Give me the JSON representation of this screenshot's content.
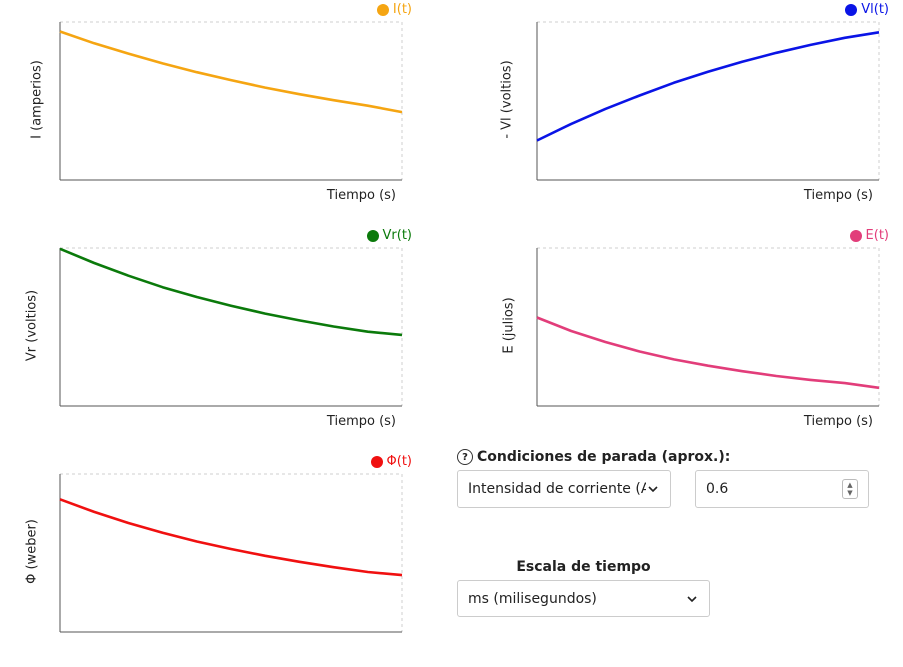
{
  "chart_data": [
    {
      "type": "line",
      "legend": "I(t)",
      "color": "#f5a512",
      "ylabel": "I (amperios)",
      "xlabel": "Tiempo (s)",
      "grid": false,
      "legend_position": "top-right",
      "x": [
        0,
        0.1,
        0.2,
        0.3,
        0.4,
        0.5,
        0.6,
        0.7,
        0.8,
        0.9,
        1.0
      ],
      "values": [
        0.94,
        0.865,
        0.8,
        0.738,
        0.682,
        0.632,
        0.585,
        0.543,
        0.505,
        0.47,
        0.43
      ]
    },
    {
      "type": "line",
      "legend": "Vl(t)",
      "color": "#0a14e6",
      "ylabel": "- Vl (voltios)",
      "xlabel": "Tiempo (s)",
      "grid": false,
      "legend_position": "top-right",
      "x": [
        0,
        0.1,
        0.2,
        0.3,
        0.4,
        0.5,
        0.6,
        0.7,
        0.8,
        0.9,
        1.0
      ],
      "values": [
        0.25,
        0.355,
        0.45,
        0.535,
        0.615,
        0.685,
        0.748,
        0.805,
        0.855,
        0.9,
        0.935
      ]
    },
    {
      "type": "line",
      "legend": "Vr(t)",
      "color": "#0b7a0b",
      "ylabel": "Vr (voltios)",
      "xlabel": "Tiempo (s)",
      "grid": false,
      "legend_position": "top-right",
      "x": [
        0,
        0.1,
        0.2,
        0.3,
        0.4,
        0.5,
        0.6,
        0.7,
        0.8,
        0.9,
        1.0
      ],
      "values": [
        0.995,
        0.905,
        0.825,
        0.752,
        0.69,
        0.635,
        0.585,
        0.542,
        0.503,
        0.47,
        0.45
      ]
    },
    {
      "type": "line",
      "legend": "E(t)",
      "color": "#e23d7a",
      "ylabel": "E (julios)",
      "xlabel": "Tiempo (s)",
      "grid": false,
      "legend_position": "top-right",
      "x": [
        0,
        0.1,
        0.2,
        0.3,
        0.4,
        0.5,
        0.6,
        0.7,
        0.8,
        0.9,
        1.0
      ],
      "values": [
        0.56,
        0.475,
        0.405,
        0.345,
        0.295,
        0.255,
        0.22,
        0.19,
        0.165,
        0.145,
        0.115
      ]
    },
    {
      "type": "line",
      "legend": "Φ(t)",
      "color": "#f01010",
      "ylabel": "Φ (weber)",
      "xlabel": "Tiempo (s)",
      "grid": false,
      "legend_position": "top-right",
      "x": [
        0,
        0.1,
        0.2,
        0.3,
        0.4,
        0.5,
        0.6,
        0.7,
        0.8,
        0.9,
        1.0
      ],
      "values": [
        0.84,
        0.76,
        0.69,
        0.628,
        0.573,
        0.525,
        0.482,
        0.444,
        0.41,
        0.38,
        0.36
      ]
    }
  ],
  "controls": {
    "stop_title": "Condiciones de parada (aprox.):",
    "help_icon": "?",
    "stop_select_value": "Intensidad de corriente (A",
    "stop_value": "0.6",
    "scale_title": "Escala de tiempo",
    "scale_select_value": "ms (milisegundos)"
  }
}
